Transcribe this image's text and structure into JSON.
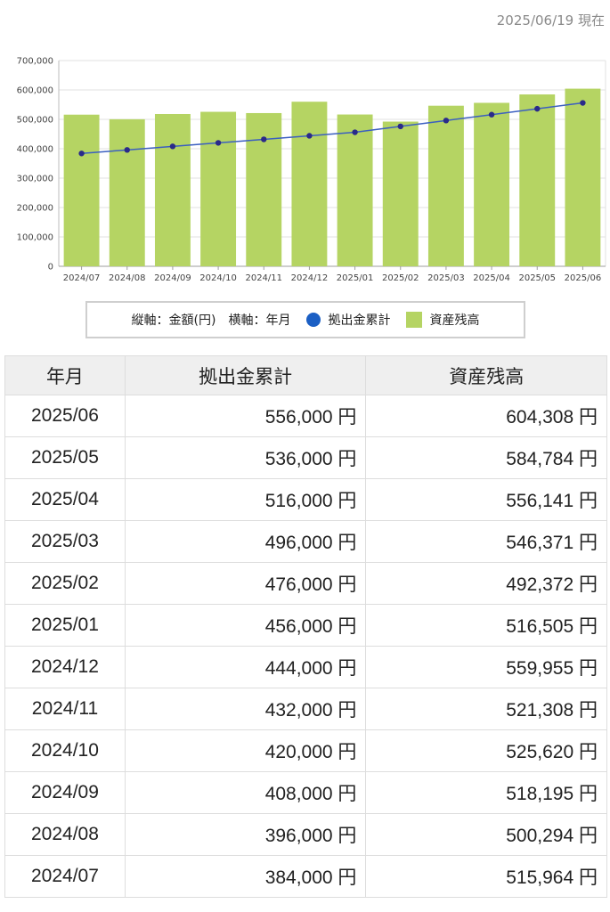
{
  "as_of": "2025/06/19 現在",
  "legend": {
    "axes_note": "縦軸：金額(円)　横軸：年月",
    "line_label": "拠出金累計",
    "bar_label": "資産残高"
  },
  "colors": {
    "bar": "#b5d463",
    "line": "#3b5fc0",
    "point": "#2a2a8a",
    "legend_dot": "#1b5fc4",
    "grid": "#e2e2e2"
  },
  "chart_data": {
    "type": "bar",
    "categories": [
      "2024/07",
      "2024/08",
      "2024/09",
      "2024/10",
      "2024/11",
      "2024/12",
      "2025/01",
      "2025/02",
      "2025/03",
      "2025/04",
      "2025/05",
      "2025/06"
    ],
    "y_ticks": [
      "0",
      "100,000",
      "200,000",
      "300,000",
      "400,000",
      "500,000",
      "600,000",
      "700,000"
    ],
    "ylim": [
      0,
      700000
    ],
    "grid": true,
    "legend_position": "bottom",
    "series": [
      {
        "name": "資産残高",
        "kind": "bar",
        "values": [
          515964,
          500294,
          518195,
          525620,
          521308,
          559955,
          516505,
          492372,
          546371,
          556141,
          584784,
          604308
        ]
      },
      {
        "name": "拠出金累計",
        "kind": "line",
        "values": [
          384000,
          396000,
          408000,
          420000,
          432000,
          444000,
          456000,
          476000,
          496000,
          516000,
          536000,
          556000
        ]
      }
    ]
  },
  "table": {
    "headers": [
      "年月",
      "拠出金累計",
      "資産残高"
    ],
    "rows": [
      {
        "month": "2025/06",
        "contrib": "556,000 円",
        "asset": "604,308 円"
      },
      {
        "month": "2025/05",
        "contrib": "536,000 円",
        "asset": "584,784 円"
      },
      {
        "month": "2025/04",
        "contrib": "516,000 円",
        "asset": "556,141 円"
      },
      {
        "month": "2025/03",
        "contrib": "496,000 円",
        "asset": "546,371 円"
      },
      {
        "month": "2025/02",
        "contrib": "476,000 円",
        "asset": "492,372 円"
      },
      {
        "month": "2025/01",
        "contrib": "456,000 円",
        "asset": "516,505 円"
      },
      {
        "month": "2024/12",
        "contrib": "444,000 円",
        "asset": "559,955 円"
      },
      {
        "month": "2024/11",
        "contrib": "432,000 円",
        "asset": "521,308 円"
      },
      {
        "month": "2024/10",
        "contrib": "420,000 円",
        "asset": "525,620 円"
      },
      {
        "month": "2024/09",
        "contrib": "408,000 円",
        "asset": "518,195 円"
      },
      {
        "month": "2024/08",
        "contrib": "396,000 円",
        "asset": "500,294 円"
      },
      {
        "month": "2024/07",
        "contrib": "384,000 円",
        "asset": "515,964 円"
      }
    ]
  }
}
